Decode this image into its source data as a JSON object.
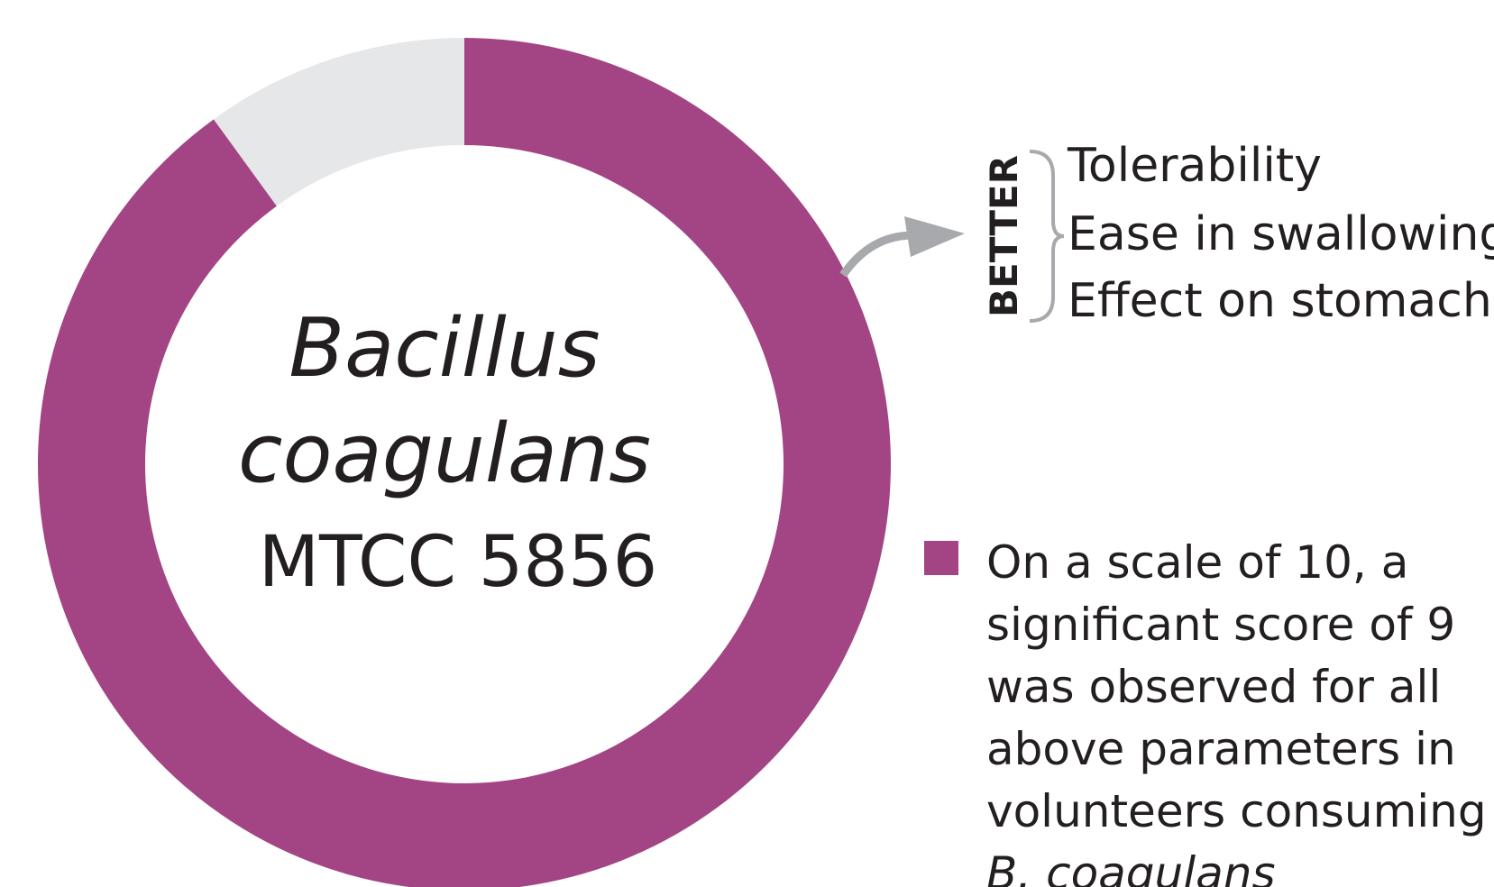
{
  "chart_data": {
    "type": "donut",
    "values": [
      9,
      1
    ],
    "colors": [
      "#a34584",
      "#e6e7e9"
    ],
    "center_text": [
      "Bacillus",
      "coagulans",
      "MTCC 5856"
    ],
    "annotation": {
      "label": "BETTER",
      "items": [
        "Tolerability",
        "Ease in swallowing",
        "Effect on stomach"
      ]
    },
    "legend": [
      "On a scale of 10, a",
      "significant score of 9",
      "was observed for all",
      "above parameters in",
      "volunteers consuming",
      "B. coagulans"
    ]
  }
}
